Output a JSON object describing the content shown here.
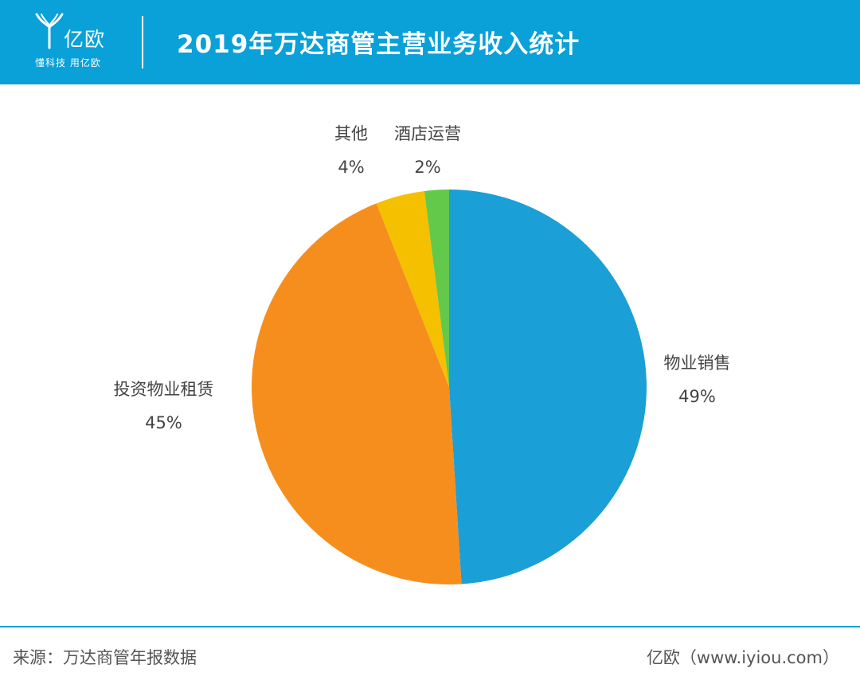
{
  "header": {
    "brand_name": "亿欧",
    "brand_tagline": "懂科技 用亿欧",
    "title": "2019年万达商管主营业务收入统计",
    "background_color": "#0aa0d8"
  },
  "chart_data": {
    "type": "pie",
    "title": "2019年万达商管主营业务收入统计",
    "slices": [
      {
        "label": "物业销售",
        "value": 49,
        "value_label": "49%",
        "color": "#1a9fd6"
      },
      {
        "label": "投资物业租赁",
        "value": 45,
        "value_label": "45%",
        "color": "#f68e1e"
      },
      {
        "label": "其他",
        "value": 4,
        "value_label": "4%",
        "color": "#f5c000"
      },
      {
        "label": "酒店运营",
        "value": 2,
        "value_label": "2%",
        "color": "#62c94a"
      }
    ],
    "start": "12 o'clock",
    "direction": "clockwise",
    "legend": "none",
    "labels": "outside"
  },
  "footer": {
    "source": "来源：万达商管年报数据",
    "brand": "亿欧（www.iyiou.com）",
    "line_color": "#14a0d8"
  }
}
